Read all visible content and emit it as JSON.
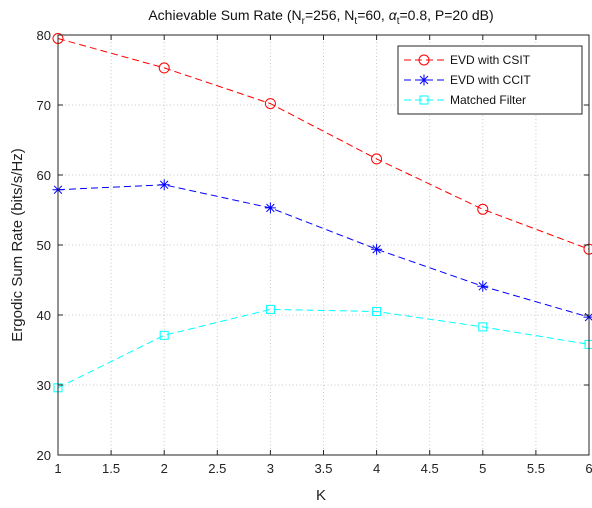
{
  "chart_data": {
    "type": "line",
    "title": {
      "prefix": "Achievable Sum Rate (N",
      "sub1": "r",
      "part2": "=256, N",
      "sub2": "t",
      "part3": "=60, ",
      "alpha": "α",
      "sub3": "t",
      "suffix": "=0.8, P=20 dB)"
    },
    "xlabel": "K",
    "ylabel": "Ergodic Sum Rate (bits/s/Hz)",
    "xlim": [
      1,
      6
    ],
    "ylim": [
      20,
      80
    ],
    "xticks": [
      1,
      1.5,
      2,
      2.5,
      3,
      3.5,
      4,
      4.5,
      5,
      5.5,
      6
    ],
    "xtick_labels": [
      "1",
      "1.5",
      "2",
      "2.5",
      "3",
      "3.5",
      "4",
      "4.5",
      "5",
      "5.5",
      "6"
    ],
    "yticks": [
      20,
      30,
      40,
      50,
      60,
      70,
      80
    ],
    "ytick_labels": [
      "20",
      "30",
      "40",
      "50",
      "60",
      "70",
      "80"
    ],
    "grid": true,
    "legend_position": "top-right",
    "x": [
      1,
      2,
      3,
      4,
      5,
      6
    ],
    "series": [
      {
        "name": "EVD with CSIT",
        "values": [
          79.5,
          75.3,
          70.2,
          62.3,
          55.1,
          49.4
        ],
        "color": "#ff0000",
        "marker": "circle"
      },
      {
        "name": "EVD with CCIT",
        "values": [
          57.9,
          58.6,
          55.3,
          49.4,
          44.1,
          39.7
        ],
        "color": "#0000ff",
        "marker": "asterisk"
      },
      {
        "name": "Matched Filter",
        "values": [
          29.6,
          37.1,
          40.8,
          40.5,
          38.3,
          35.8
        ],
        "color": "#00ffff",
        "marker": "square"
      }
    ]
  }
}
